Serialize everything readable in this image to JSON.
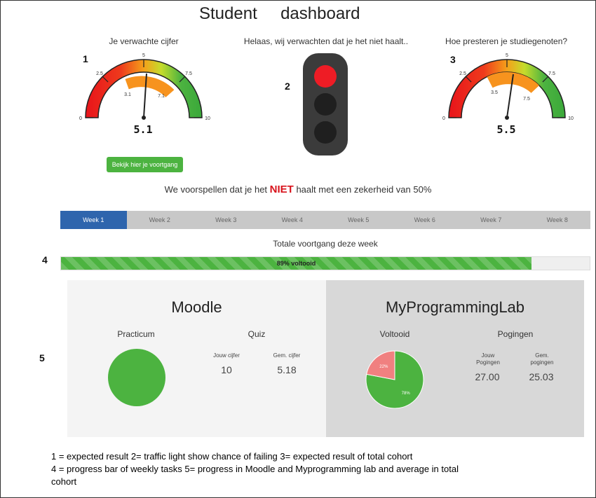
{
  "header": {
    "title": "Student     dashboard"
  },
  "markers": [
    "1",
    "2",
    "3",
    "4",
    "5"
  ],
  "gauge_left": {
    "caption": "Je verwachte cijfer",
    "value": "5.1",
    "ticks": [
      "0",
      "2.5",
      "5",
      "7.5",
      "10"
    ],
    "band_labels": [
      "3.1",
      "7.1"
    ]
  },
  "traffic_light": {
    "caption": "Helaas, wij verwachten dat je het niet haalt..",
    "active_light": "red",
    "colors": {
      "red": "#ee1c25",
      "off": "#1f1f1f",
      "housing": "#3b3b3b"
    }
  },
  "gauge_right": {
    "caption": "Hoe presteren je studiegenoten?",
    "value": "5.5",
    "ticks": [
      "0",
      "2.5",
      "5",
      "7.5",
      "10"
    ],
    "band_labels": [
      "3.5",
      "7.5"
    ]
  },
  "cta": {
    "label": "Bekijk hier je voortgang"
  },
  "prediction": {
    "prefix": "We voorspellen dat je het ",
    "highlight": "NIET",
    "suffix": " haalt met een zekerheid van 50%"
  },
  "weeks": {
    "tabs": [
      "Week 1",
      "Week 2",
      "Week 3",
      "Week 4",
      "Week 5",
      "Week 6",
      "Week 7",
      "Week 8"
    ],
    "active_index": 0
  },
  "progress": {
    "title": "Totale voortgang deze week",
    "label": "89% voltooid",
    "percent": 89
  },
  "moodle": {
    "title": "Moodle",
    "practicum_label": "Practicum",
    "quiz_label": "Quiz",
    "own_grade_label": "Jouw cijfer",
    "own_grade": "10",
    "avg_grade_label": "Gem. cijfer",
    "avg_grade": "5.18"
  },
  "mpl": {
    "title": "MyProgrammingLab",
    "completed_label": "Voltooid",
    "attempts_label": "Pogingen",
    "own_attempts_label": "Jouw Pogingen",
    "own_attempts": "27.00",
    "avg_attempts_label": "Gem. pogingen",
    "avg_attempts": "25.03",
    "pie_done_label": "78%",
    "pie_todo_label": "22%"
  },
  "legend": {
    "line1": "1 = expected result  2=  traffic light  show chance of failing 3=  expected result of total cohort",
    "line2": "4 = progress bar of weekly tasks  5= progress in Moodle and Myprogramming lab and average in total",
    "line3": "cohort"
  },
  "colors": {
    "accent_green": "#4cb340",
    "accent_blue": "#2e65ad",
    "alert_red": "#d8121b",
    "pie_red": "#f08080"
  },
  "chart_data": [
    {
      "type": "pie",
      "categories": [
        "Practicum"
      ],
      "values": [
        100
      ]
    },
    {
      "type": "pie",
      "categories": [
        "78%",
        "22%"
      ],
      "values": [
        78,
        22
      ]
    }
  ]
}
